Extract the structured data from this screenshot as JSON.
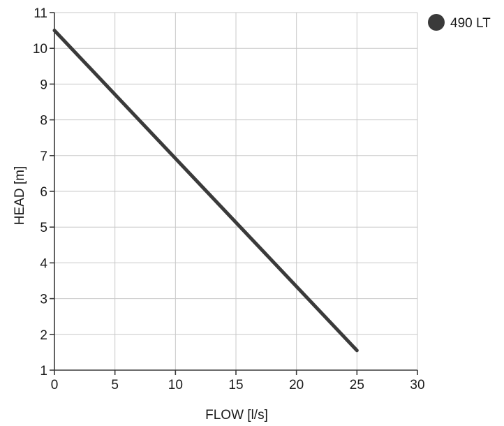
{
  "chart_data": {
    "type": "line",
    "title": "",
    "xlabel": "FLOW [l/s]",
    "ylabel": "HEAD [m]",
    "xlim": [
      0,
      30
    ],
    "ylim": [
      1,
      11
    ],
    "x_ticks": [
      "0",
      "5",
      "10",
      "15",
      "20",
      "25",
      "30"
    ],
    "y_ticks": [
      "1",
      "2",
      "3",
      "4",
      "5",
      "6",
      "7",
      "8",
      "9",
      "10",
      "11"
    ],
    "grid": true,
    "legend_position": "top-right",
    "series": [
      {
        "name": "490 LT",
        "color": "#3a3a3a",
        "x": [
          0,
          25
        ],
        "y": [
          10.5,
          1.55
        ]
      }
    ]
  }
}
